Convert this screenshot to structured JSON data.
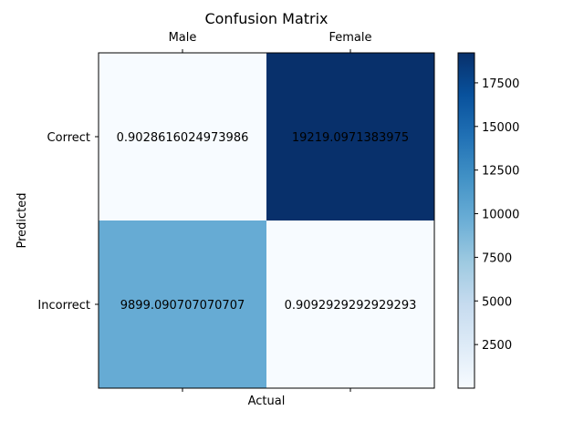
{
  "chart_data": {
    "type": "heatmap",
    "title": "Confusion Matrix",
    "xlabel": "Actual",
    "ylabel": "Predicted",
    "x_categories": [
      "Male",
      "Female"
    ],
    "y_categories": [
      "Correct",
      "Incorrect"
    ],
    "cells": [
      {
        "row": 0,
        "col": 0,
        "value": 0.9028616024973986,
        "label": "0.9028616024973986"
      },
      {
        "row": 0,
        "col": 1,
        "value": 19219.0971383975,
        "label": "19219.0971383975"
      },
      {
        "row": 1,
        "col": 0,
        "value": 9899.090707070707,
        "label": "9899.090707070707"
      },
      {
        "row": 1,
        "col": 1,
        "value": 0.9092929292929293,
        "label": "0.9092929292929293"
      }
    ],
    "colormap": "Blues",
    "color_range": [
      0.9028616024973986,
      19219.0971383975
    ],
    "colorbar_ticks": [
      "2500",
      "5000",
      "7500",
      "10000",
      "12500",
      "15000",
      "17500"
    ],
    "grid": false
  }
}
